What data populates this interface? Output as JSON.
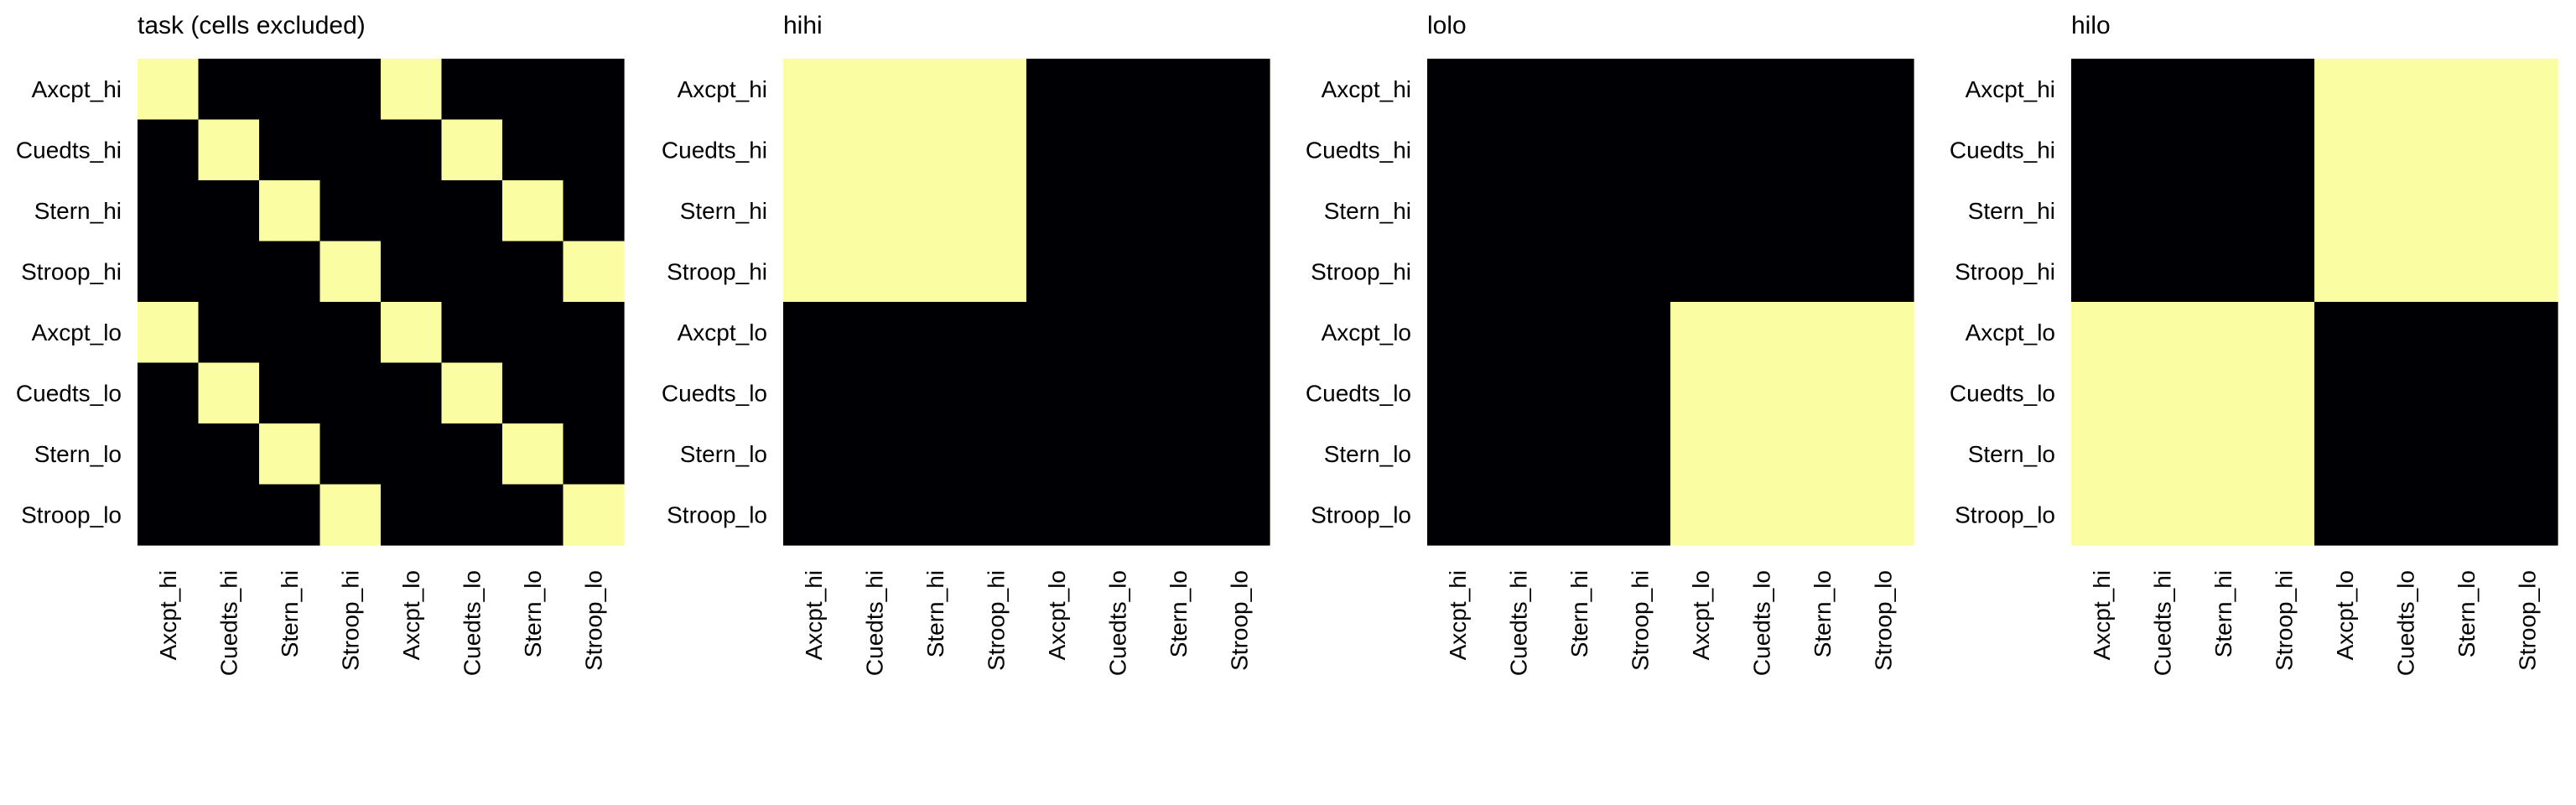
{
  "colors": {
    "on": "#fafda1",
    "off": "#000004",
    "background": "#ffffff"
  },
  "chart_data": [
    {
      "type": "heatmap",
      "title": "task (cells excluded)",
      "rows": [
        "Axcpt_hi",
        "Cuedts_hi",
        "Stern_hi",
        "Stroop_hi",
        "Axcpt_lo",
        "Cuedts_lo",
        "Stern_lo",
        "Stroop_lo"
      ],
      "cols": [
        "Axcpt_hi",
        "Cuedts_hi",
        "Stern_hi",
        "Stroop_hi",
        "Axcpt_lo",
        "Cuedts_lo",
        "Stern_lo",
        "Stroop_lo"
      ],
      "values": [
        [
          1,
          0,
          0,
          0,
          1,
          0,
          0,
          0
        ],
        [
          0,
          1,
          0,
          0,
          0,
          1,
          0,
          0
        ],
        [
          0,
          0,
          1,
          0,
          0,
          0,
          1,
          0
        ],
        [
          0,
          0,
          0,
          1,
          0,
          0,
          0,
          1
        ],
        [
          1,
          0,
          0,
          0,
          1,
          0,
          0,
          0
        ],
        [
          0,
          1,
          0,
          0,
          0,
          1,
          0,
          0
        ],
        [
          0,
          0,
          1,
          0,
          0,
          0,
          1,
          0
        ],
        [
          0,
          0,
          0,
          1,
          0,
          0,
          0,
          1
        ]
      ]
    },
    {
      "type": "heatmap",
      "title": "hihi",
      "rows": [
        "Axcpt_hi",
        "Cuedts_hi",
        "Stern_hi",
        "Stroop_hi",
        "Axcpt_lo",
        "Cuedts_lo",
        "Stern_lo",
        "Stroop_lo"
      ],
      "cols": [
        "Axcpt_hi",
        "Cuedts_hi",
        "Stern_hi",
        "Stroop_hi",
        "Axcpt_lo",
        "Cuedts_lo",
        "Stern_lo",
        "Stroop_lo"
      ],
      "values": [
        [
          1,
          1,
          1,
          1,
          0,
          0,
          0,
          0
        ],
        [
          1,
          1,
          1,
          1,
          0,
          0,
          0,
          0
        ],
        [
          1,
          1,
          1,
          1,
          0,
          0,
          0,
          0
        ],
        [
          1,
          1,
          1,
          1,
          0,
          0,
          0,
          0
        ],
        [
          0,
          0,
          0,
          0,
          0,
          0,
          0,
          0
        ],
        [
          0,
          0,
          0,
          0,
          0,
          0,
          0,
          0
        ],
        [
          0,
          0,
          0,
          0,
          0,
          0,
          0,
          0
        ],
        [
          0,
          0,
          0,
          0,
          0,
          0,
          0,
          0
        ]
      ]
    },
    {
      "type": "heatmap",
      "title": "lolo",
      "rows": [
        "Axcpt_hi",
        "Cuedts_hi",
        "Stern_hi",
        "Stroop_hi",
        "Axcpt_lo",
        "Cuedts_lo",
        "Stern_lo",
        "Stroop_lo"
      ],
      "cols": [
        "Axcpt_hi",
        "Cuedts_hi",
        "Stern_hi",
        "Stroop_hi",
        "Axcpt_lo",
        "Cuedts_lo",
        "Stern_lo",
        "Stroop_lo"
      ],
      "values": [
        [
          0,
          0,
          0,
          0,
          0,
          0,
          0,
          0
        ],
        [
          0,
          0,
          0,
          0,
          0,
          0,
          0,
          0
        ],
        [
          0,
          0,
          0,
          0,
          0,
          0,
          0,
          0
        ],
        [
          0,
          0,
          0,
          0,
          0,
          0,
          0,
          0
        ],
        [
          0,
          0,
          0,
          0,
          1,
          1,
          1,
          1
        ],
        [
          0,
          0,
          0,
          0,
          1,
          1,
          1,
          1
        ],
        [
          0,
          0,
          0,
          0,
          1,
          1,
          1,
          1
        ],
        [
          0,
          0,
          0,
          0,
          1,
          1,
          1,
          1
        ]
      ]
    },
    {
      "type": "heatmap",
      "title": "hilo",
      "rows": [
        "Axcpt_hi",
        "Cuedts_hi",
        "Stern_hi",
        "Stroop_hi",
        "Axcpt_lo",
        "Cuedts_lo",
        "Stern_lo",
        "Stroop_lo"
      ],
      "cols": [
        "Axcpt_hi",
        "Cuedts_hi",
        "Stern_hi",
        "Stroop_hi",
        "Axcpt_lo",
        "Cuedts_lo",
        "Stern_lo",
        "Stroop_lo"
      ],
      "values": [
        [
          0,
          0,
          0,
          0,
          1,
          1,
          1,
          1
        ],
        [
          0,
          0,
          0,
          0,
          1,
          1,
          1,
          1
        ],
        [
          0,
          0,
          0,
          0,
          1,
          1,
          1,
          1
        ],
        [
          0,
          0,
          0,
          0,
          1,
          1,
          1,
          1
        ],
        [
          1,
          1,
          1,
          1,
          0,
          0,
          0,
          0
        ],
        [
          1,
          1,
          1,
          1,
          0,
          0,
          0,
          0
        ],
        [
          1,
          1,
          1,
          1,
          0,
          0,
          0,
          0
        ],
        [
          1,
          1,
          1,
          1,
          0,
          0,
          0,
          0
        ]
      ]
    }
  ]
}
